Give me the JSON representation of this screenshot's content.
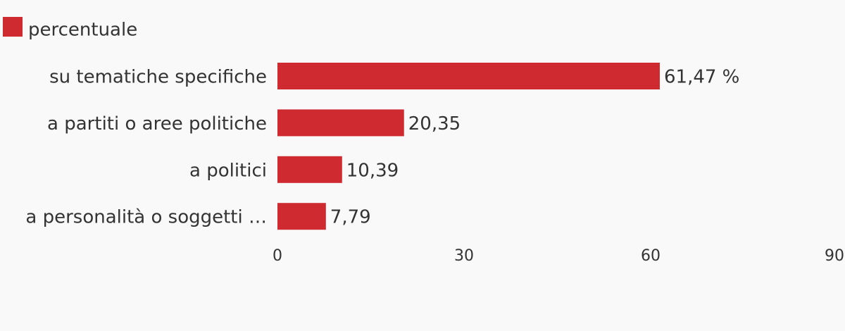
{
  "chart_data": {
    "type": "bar",
    "orientation": "horizontal",
    "categories": [
      "su tematiche specifiche",
      "a partiti o aree politiche",
      "a politici",
      "a personalità o soggetti …"
    ],
    "series": [
      {
        "name": "percentuale",
        "color": "#cf2a30",
        "values": [
          61.47,
          20.35,
          10.39,
          7.79
        ],
        "value_labels": [
          "61,47 %",
          "20,35",
          "10,39",
          "7,79"
        ]
      }
    ],
    "xlim": [
      0,
      90
    ],
    "xticks": [
      0,
      30,
      60,
      90
    ],
    "grid": false,
    "legend": "top-left"
  }
}
